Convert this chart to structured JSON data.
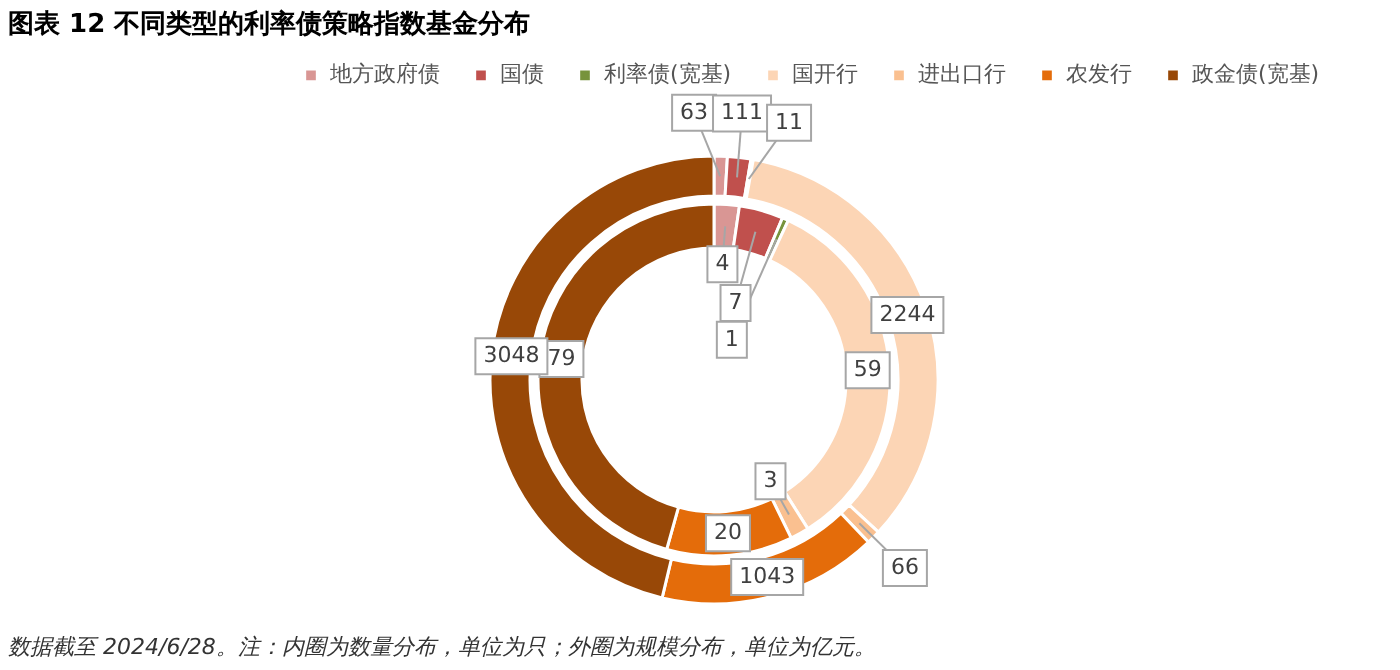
{
  "chart_data": {
    "type": "donut",
    "title": "图表 12  不同类型的利率债策略指数基金分布",
    "categories": [
      "地方政府债",
      "国债",
      "利率债(宽基)",
      "国开行",
      "进出口行",
      "农发行",
      "政金债(宽基)"
    ],
    "colors": [
      "#d99694",
      "#c0504d",
      "#77933c",
      "#fcd5b5",
      "#fac090",
      "#e46c0a",
      "#984807"
    ],
    "series": [
      {
        "values": [
          4,
          7,
          1,
          59,
          3,
          20,
          79
        ]
      },
      {
        "values": [
          63,
          111,
          11,
          2244,
          66,
          1043,
          3048
        ]
      }
    ],
    "data_labels": true,
    "legend": "top",
    "annotations": [
      "数据截至 2024/6/28。注：内圈为数量分布，单位为只；外圈为规模分布，单位为亿元。"
    ]
  }
}
